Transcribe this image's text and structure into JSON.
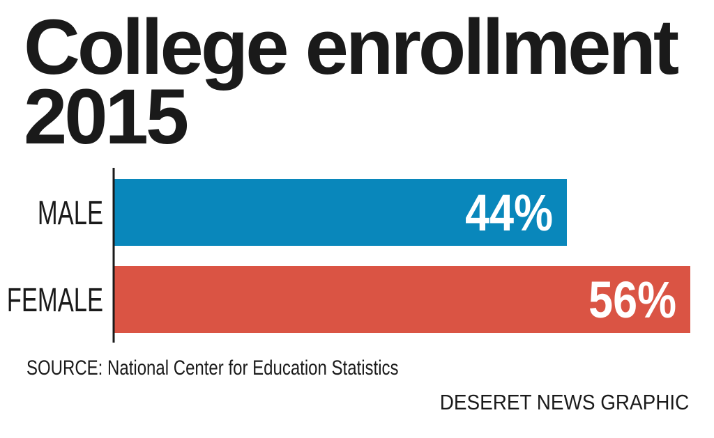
{
  "chart_data": {
    "type": "bar",
    "orientation": "horizontal",
    "title": "College enrollment 2015",
    "title_lines": [
      "College enrollment",
      "2015"
    ],
    "categories": [
      "MALE",
      "FEMALE"
    ],
    "values": [
      44,
      56
    ],
    "value_labels": [
      "44%",
      "56%"
    ],
    "colors": [
      "#0987bb",
      "#da5444"
    ],
    "xlim": [
      0,
      56
    ],
    "grid": false,
    "xlabel": "",
    "ylabel": ""
  },
  "footer": {
    "source": "SOURCE: National Center for Education Statistics",
    "credit": "DESERET NEWS GRAPHIC"
  }
}
